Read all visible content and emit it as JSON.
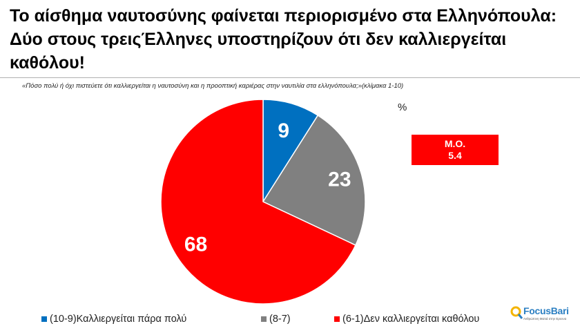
{
  "title": "Το αίσθημα ναυτοσύνης φαίνεται περιορισμένο στα Ελληνόπουλα: Δύο στους τρειςΈλληνες υποστηρίζουν ότι δεν καλλιεργείται καθόλου!",
  "subtitle": "«Πόσο πολύ ή όχι πιστεύετε ότι καλλιεργείται η ναυτοσύνη και η προοπτική καριέρας στην ναυτιλία στα ελληνόπουλα;»(κλίμακα 1-10)",
  "unit_label": "%",
  "mean": {
    "label": "Μ.Ο.",
    "value": "5.4"
  },
  "chart_data": {
    "type": "pie",
    "title": "",
    "categories": [
      "(10-9)Καλλιεργείται πάρα πολύ",
      "(8-7)",
      "(6-1)Δεν καλλιεργείται καθόλου"
    ],
    "values": [
      9,
      23,
      68
    ],
    "value_labels": [
      "9",
      "23",
      "68"
    ],
    "colors": [
      "#0070c0",
      "#808080",
      "#ff0000"
    ],
    "start": "12 o'clock",
    "direction": "clockwise",
    "legend_position": "bottom"
  },
  "legend": [
    {
      "label": "(10-9)Καλλιεργείται πάρα πολύ",
      "color": "#0070c0"
    },
    {
      "label": "(8-7)",
      "color": "#808080"
    },
    {
      "label": "(6-1)Δεν καλλιεργείται καθόλου",
      "color": "#ff0000"
    }
  ],
  "logo": {
    "name": "FocusBari",
    "tagline": "Ανθρώπινη Ματιά στην Ερευνα",
    "icon": "focusbari-logo-icon"
  }
}
